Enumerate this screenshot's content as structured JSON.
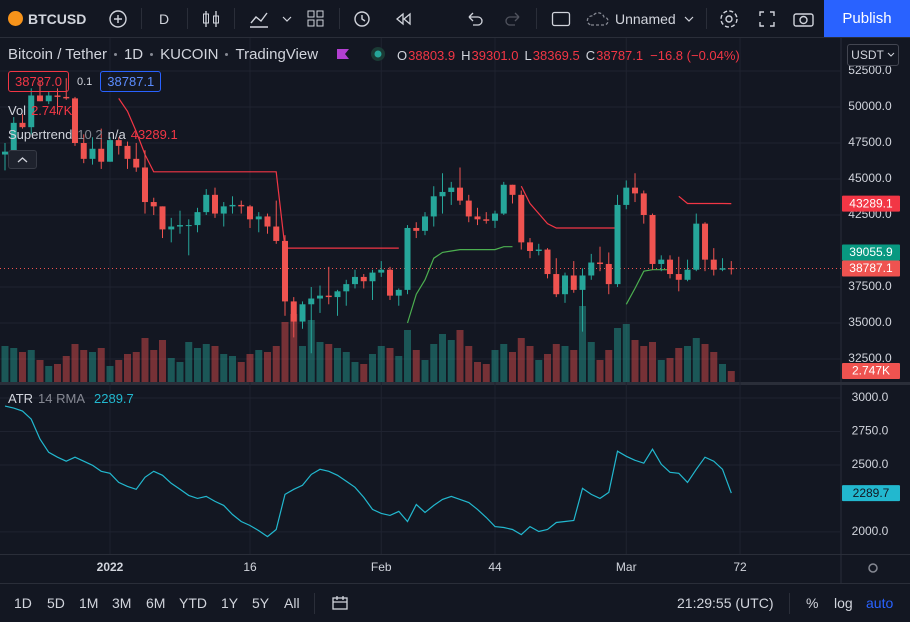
{
  "toolbar": {
    "symbol": "BTCUSD",
    "interval": "D",
    "layout_name": "Unnamed",
    "publish": "Publish"
  },
  "legend": {
    "symbol_title": "Bitcoin / Tether",
    "interval": "1D",
    "exchange": "KUCOIN",
    "source": "TradingView",
    "ohlc": [
      {
        "label": "O",
        "value": "38803.9"
      },
      {
        "label": "H",
        "value": "39301.0"
      },
      {
        "label": "L",
        "value": "38369.5"
      },
      {
        "label": "C",
        "value": "38787.1"
      }
    ],
    "change": "−16.8 (−0.04%)",
    "sell": "38787.0",
    "spread": "0.1",
    "buy": "38787.1",
    "volume_name": "Vol",
    "supertrend_name": "Supertrend",
    "supertrend_params": "10 2",
    "supertrend_na": "n/a",
    "atr_name": "ATR",
    "atr_params": "14 RMA"
  },
  "currency": "USDT",
  "chart_data": [
    {
      "type": "candlestick",
      "x": [
        -12,
        -11,
        -10,
        -9,
        -8,
        -7,
        -6,
        -5,
        -4,
        -3,
        -2,
        -1,
        0,
        1,
        2,
        3,
        4,
        5,
        6,
        7,
        8,
        9,
        10,
        11,
        12,
        13,
        14,
        15,
        16,
        17,
        18,
        19,
        20,
        21,
        22,
        23,
        24,
        25,
        26,
        27,
        28,
        29,
        30,
        31,
        32,
        33,
        34,
        35,
        36,
        37,
        38,
        39,
        40,
        41,
        42,
        43,
        44,
        45,
        46,
        47,
        48,
        49,
        50,
        51,
        52,
        53,
        54,
        55,
        56,
        57,
        58,
        59,
        60,
        61,
        62,
        63,
        64,
        65,
        66,
        67,
        68,
        69,
        70,
        71
      ],
      "open": [
        46700,
        46900,
        48900,
        48600,
        50800,
        50400,
        50800,
        50700,
        50600,
        47500,
        46400,
        47100,
        46200,
        47700,
        47300,
        46400,
        45800,
        43400,
        43100,
        41500,
        41700,
        41800,
        41800,
        42700,
        43900,
        42600,
        43100,
        43200,
        43100,
        42200,
        42400,
        41700,
        40700,
        36500,
        35100,
        36300,
        36700,
        36900,
        36800,
        37200,
        37700,
        38200,
        37900,
        38500,
        38700,
        36900,
        37300,
        41600,
        41400,
        42400,
        43800,
        44100,
        44400,
        43500,
        42400,
        42200,
        42100,
        42600,
        44600,
        43900,
        40600,
        40000,
        40100,
        38400,
        37000,
        38300,
        37300,
        38300,
        39200,
        39100,
        37700,
        43200,
        44400,
        44000,
        42500,
        39100,
        39400,
        38400,
        38000,
        38700,
        41900,
        39400,
        38700,
        38803.9
      ],
      "high": [
        47500,
        49300,
        49500,
        51300,
        51800,
        51100,
        51300,
        52000,
        50700,
        48100,
        47900,
        48500,
        47900,
        47900,
        47600,
        47500,
        47000,
        43700,
        43100,
        42300,
        42800,
        42200,
        43000,
        44300,
        44400,
        43400,
        43800,
        43500,
        43200,
        42700,
        42600,
        43500,
        41100,
        36800,
        36500,
        37500,
        37600,
        38900,
        37300,
        38000,
        38700,
        38400,
        38700,
        39300,
        38900,
        37400,
        41800,
        42000,
        42700,
        44500,
        45400,
        44800,
        45800,
        43900,
        43000,
        42700,
        42800,
        44800,
        44600,
        44200,
        40900,
        40500,
        40200,
        39500,
        38500,
        39300,
        38800,
        39800,
        40300,
        39900,
        43900,
        44900,
        45400,
        44200,
        42600,
        39700,
        39700,
        39600,
        39400,
        42600,
        42000,
        40200,
        39500,
        39301
      ],
      "low": [
        45600,
        46700,
        48500,
        48100,
        50400,
        50200,
        49500,
        50500,
        47300,
        46100,
        46000,
        45700,
        46200,
        46700,
        45700,
        45500,
        42600,
        42500,
        40900,
        40600,
        41200,
        39700,
        41300,
        42500,
        42300,
        41700,
        42600,
        42600,
        41600,
        41300,
        41200,
        40500,
        35500,
        34000,
        34600,
        32900,
        35700,
        36300,
        35500,
        36200,
        37400,
        37400,
        36600,
        38200,
        36600,
        36200,
        37000,
        40900,
        41100,
        41700,
        42600,
        43200,
        43200,
        42000,
        41800,
        41900,
        41600,
        42500,
        43300,
        40100,
        39500,
        39700,
        38100,
        36800,
        36400,
        37100,
        34400,
        38000,
        38600,
        37000,
        37500,
        42900,
        43400,
        41900,
        38700,
        38600,
        38100,
        37200,
        37900,
        38600,
        38600,
        38300,
        38600,
        38369.5
      ],
      "close": [
        46900,
        48900,
        48600,
        50800,
        50400,
        50800,
        50700,
        50600,
        47500,
        46400,
        47100,
        46200,
        47700,
        47300,
        46400,
        45800,
        43400,
        43100,
        41500,
        41700,
        41800,
        41800,
        42700,
        43900,
        42600,
        43100,
        43200,
        43100,
        42200,
        42400,
        41700,
        40700,
        36500,
        35100,
        36300,
        36700,
        36900,
        36800,
        37200,
        37700,
        38200,
        37900,
        38500,
        38700,
        36900,
        37300,
        41600,
        41400,
        42400,
        43800,
        44100,
        44400,
        43500,
        42400,
        42200,
        42100,
        42600,
        44600,
        43900,
        40600,
        40000,
        40100,
        38400,
        37000,
        38300,
        37300,
        38300,
        39200,
        39100,
        37700,
        43200,
        44400,
        44000,
        42500,
        39100,
        39400,
        38400,
        38000,
        38700,
        41900,
        39400,
        38700,
        38800,
        38787.1
      ],
      "up_color": "#26a69a",
      "down_color": "#ef5350",
      "volume": [
        9000,
        8500,
        7500,
        8000,
        5500,
        4000,
        4500,
        6500,
        9500,
        8000,
        7500,
        8500,
        4000,
        5500,
        7000,
        7500,
        11000,
        8000,
        10500,
        6000,
        5000,
        10000,
        8500,
        9500,
        9000,
        7000,
        6500,
        5000,
        7000,
        8000,
        7500,
        9000,
        15000,
        17000,
        9000,
        15500,
        10000,
        9500,
        8500,
        7500,
        5000,
        4500,
        7000,
        9000,
        8500,
        6500,
        13000,
        8000,
        5500,
        9500,
        12000,
        10500,
        13000,
        9000,
        5000,
        4500,
        8000,
        9500,
        7500,
        11000,
        9000,
        5500,
        7000,
        9500,
        9000,
        8000,
        19000,
        10000,
        5500,
        8000,
        13500,
        14500,
        10500,
        9000,
        10000,
        5500,
        6000,
        8500,
        9000,
        11000,
        9500,
        7500,
        4500,
        2747
      ],
      "volume_label": "2.747K",
      "volume_ylim": [
        0,
        86000
      ],
      "series": [
        {
          "name": "Supertrend",
          "color": "#f23645",
          "values": [
            null,
            null,
            null,
            null,
            null,
            null,
            null,
            null,
            null,
            null,
            null,
            null,
            null,
            50600,
            49700,
            48300,
            46700,
            45500,
            45500,
            45500,
            45500,
            45500,
            45500,
            45500,
            45500,
            45500,
            45500,
            45500,
            45500,
            45500,
            45500,
            45500,
            40200,
            40200,
            40200,
            40200,
            40200,
            40200,
            40200,
            40200,
            40200,
            40200,
            40200,
            40200,
            40200,
            40200,
            null,
            null,
            null,
            null,
            null,
            null,
            null,
            null,
            null,
            null,
            null,
            null,
            null,
            44500,
            43300,
            42600,
            41900,
            41600,
            41600,
            41600,
            41600,
            41600,
            41600,
            41600,
            41600,
            null,
            null,
            null,
            null,
            null,
            null,
            43800,
            43300,
            43300,
            43300,
            43300,
            43300,
            43289.1
          ]
        },
        {
          "color": "#4caf50",
          "values": [
            null,
            null,
            null,
            null,
            null,
            null,
            null,
            null,
            null,
            null,
            null,
            null,
            null,
            null,
            null,
            null,
            null,
            null,
            null,
            null,
            null,
            null,
            null,
            null,
            null,
            null,
            null,
            null,
            null,
            null,
            null,
            null,
            null,
            null,
            null,
            null,
            null,
            null,
            null,
            null,
            null,
            null,
            null,
            null,
            null,
            null,
            35000,
            37000,
            38000,
            39500,
            39900,
            40000,
            40100,
            40100,
            40100,
            40100,
            40100,
            40300,
            40300,
            null,
            null,
            null,
            null,
            null,
            null,
            null,
            null,
            null,
            null,
            null,
            null,
            36300,
            37400,
            38600,
            38700,
            38700,
            38700,
            null,
            null,
            null,
            null,
            null,
            null,
            null
          ]
        }
      ],
      "price_labels": [
        {
          "value": 39055.9,
          "color": "#089981"
        }
      ],
      "xlim": [
        -12.57,
        83.54
      ],
      "xticks": [
        {
          "value": 0,
          "label": "2022"
        },
        16,
        {
          "value": 31,
          "label": "Feb"
        },
        44,
        {
          "value": 59,
          "label": "Mar"
        },
        72
      ],
      "ylim": [
        30903,
        54792
      ],
      "yticks": [
        {
          "value": 52500,
          "label": "52500.0"
        },
        {
          "value": 50000,
          "label": "50000.0"
        },
        {
          "value": 47500,
          "label": "47500.0"
        },
        {
          "value": 45000,
          "label": "45000.0"
        },
        {
          "value": 42500,
          "label": "42500.0"
        },
        {
          "value": 37500,
          "label": "37500.0"
        },
        {
          "value": 35000,
          "label": "35000.0"
        },
        {
          "value": 32500,
          "label": "32500.0"
        }
      ],
      "grid": true
    },
    {
      "type": "line",
      "x": [
        -12,
        -11,
        -10,
        -9,
        -8,
        -7,
        -6,
        -5,
        -4,
        -3,
        -2,
        -1,
        0,
        1,
        2,
        3,
        4,
        5,
        6,
        7,
        8,
        9,
        10,
        11,
        12,
        13,
        14,
        15,
        16,
        17,
        18,
        19,
        20,
        21,
        22,
        23,
        24,
        25,
        26,
        27,
        28,
        29,
        30,
        31,
        32,
        33,
        34,
        35,
        36,
        37,
        38,
        39,
        40,
        41,
        42,
        43,
        44,
        45,
        46,
        47,
        48,
        49,
        50,
        51,
        52,
        53,
        54,
        55,
        56,
        57,
        58,
        59,
        60,
        61,
        62,
        63,
        64,
        65,
        66,
        67,
        68,
        69,
        70,
        71
      ],
      "values": [
        2940,
        2925,
        2903,
        2843,
        2693,
        2595,
        2558,
        2528,
        2558,
        2528,
        2498,
        2453,
        2438,
        2370,
        2340,
        2318,
        2408,
        2453,
        2423,
        2363,
        2318,
        2273,
        2250,
        2265,
        2228,
        2198,
        2130,
        2078,
        2048,
        2010,
        1965,
        2018,
        2280,
        2318,
        2348,
        2430,
        2468,
        2453,
        2423,
        2378,
        2333,
        2258,
        2168,
        2138,
        2123,
        2153,
        2078,
        2205,
        2145,
        2198,
        2243,
        2265,
        2243,
        2220,
        2168,
        2108,
        2040,
        2033,
        2018,
        1980,
        2040,
        2003,
        2018,
        2070,
        2078,
        2085,
        2325,
        2280,
        2250,
        2295,
        2603,
        2565,
        2535,
        2513,
        2618,
        2505,
        2445,
        2438,
        2370,
        2468,
        2558,
        2528,
        2468,
        2289.7
      ],
      "color": "#22b8cf",
      "ylim": [
        1835,
        3105
      ],
      "yticks": [
        {
          "value": 3000,
          "label": "3000.0"
        },
        {
          "value": 2750,
          "label": "2750.0"
        },
        {
          "value": 2500,
          "label": "2500.0"
        },
        {
          "value": 2000,
          "label": "2000.0"
        }
      ],
      "grid": true
    }
  ],
  "bottom_bar": {
    "periods": [
      "1D",
      "5D",
      "1M",
      "3M",
      "6M",
      "YTD",
      "1Y",
      "5Y",
      "All"
    ],
    "clock": "21:29:55 (UTC)",
    "percent": "%",
    "log": "log",
    "auto": "auto"
  }
}
